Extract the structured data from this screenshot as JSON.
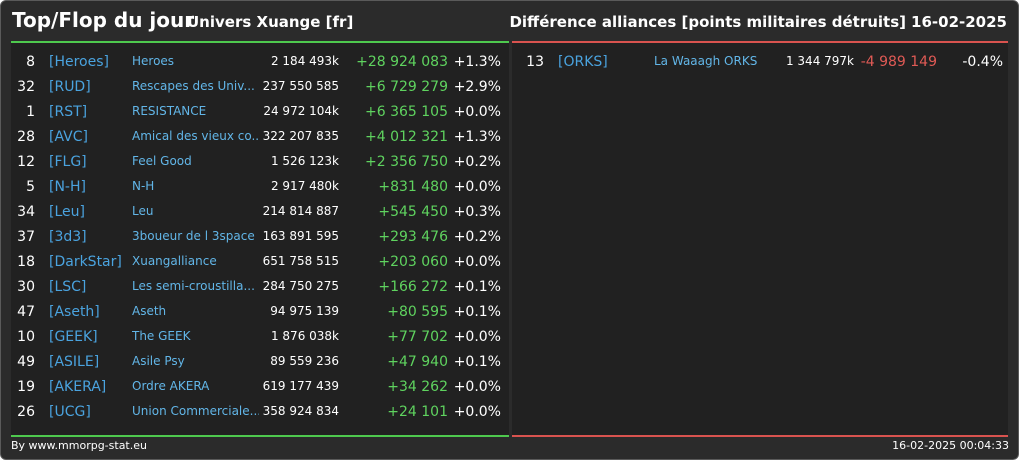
{
  "header": {
    "title": "Top/Flop du jour",
    "universe": "Univers Xuange [fr]",
    "subtitle": "Différence alliances [points militaires détruits]",
    "date": "16-02-2025"
  },
  "top": [
    {
      "rank": "8",
      "tag": "[Heroes]",
      "name": "Heroes",
      "points": "2 184 493k",
      "diff": "+28 924 083",
      "pct": "+1.3%"
    },
    {
      "rank": "32",
      "tag": "[RUD]",
      "name": "Rescapes des Univ...",
      "points": "237 550 585",
      "diff": "+6 729 279",
      "pct": "+2.9%"
    },
    {
      "rank": "1",
      "tag": "[RST]",
      "name": "RESISTANCE",
      "points": "24 972 104k",
      "diff": "+6 365 105",
      "pct": "+0.0%"
    },
    {
      "rank": "28",
      "tag": "[AVC]",
      "name": "Amical des vieux co...",
      "points": "322 207 835",
      "diff": "+4 012 321",
      "pct": "+1.3%"
    },
    {
      "rank": "12",
      "tag": "[FLG]",
      "name": "Feel Good",
      "points": "1 526 123k",
      "diff": "+2 356 750",
      "pct": "+0.2%"
    },
    {
      "rank": "5",
      "tag": "[N-H]",
      "name": "N-H",
      "points": "2 917 480k",
      "diff": "+831 480",
      "pct": "+0.0%"
    },
    {
      "rank": "34",
      "tag": "[Leu]",
      "name": "Leu",
      "points": "214 814 887",
      "diff": "+545 450",
      "pct": "+0.3%"
    },
    {
      "rank": "37",
      "tag": "[3d3]",
      "name": "3boueur de l 3space",
      "points": "163 891 595",
      "diff": "+293 476",
      "pct": "+0.2%"
    },
    {
      "rank": "18",
      "tag": "[DarkStar]",
      "name": "Xuangalliance",
      "points": "651 758 515",
      "diff": "+203 060",
      "pct": "+0.0%"
    },
    {
      "rank": "30",
      "tag": "[LSC]",
      "name": "Les semi-croustilla...",
      "points": "284 750 275",
      "diff": "+166 272",
      "pct": "+0.1%"
    },
    {
      "rank": "47",
      "tag": "[Aseth]",
      "name": "Aseth",
      "points": "94 975 139",
      "diff": "+80 595",
      "pct": "+0.1%"
    },
    {
      "rank": "10",
      "tag": "[GEEK]",
      "name": "The GEEK",
      "points": "1 876 038k",
      "diff": "+77 702",
      "pct": "+0.0%"
    },
    {
      "rank": "49",
      "tag": "[ASILE]",
      "name": "Asile Psy",
      "points": "89 559 236",
      "diff": "+47 940",
      "pct": "+0.1%"
    },
    {
      "rank": "19",
      "tag": "[AKERA]",
      "name": "Ordre AKERA",
      "points": "619 177 439",
      "diff": "+34 262",
      "pct": "+0.0%"
    },
    {
      "rank": "26",
      "tag": "[UCG]",
      "name": "Union Commerciale...",
      "points": "358 924 834",
      "diff": "+24 101",
      "pct": "+0.0%"
    }
  ],
  "flop": [
    {
      "rank": "13",
      "tag": "[ORKS]",
      "name": "La Waaagh ORKS",
      "points": "1 344 797k",
      "diff": "-4 989 149",
      "pct": "-0.4%"
    }
  ],
  "footer": {
    "source": "By www.mmorpg-stat.eu",
    "timestamp": "16-02-2025 00:04:33"
  },
  "colors": {
    "positive": "#5fd35f",
    "negative": "#e05a55",
    "tag": "#4aa3df"
  }
}
